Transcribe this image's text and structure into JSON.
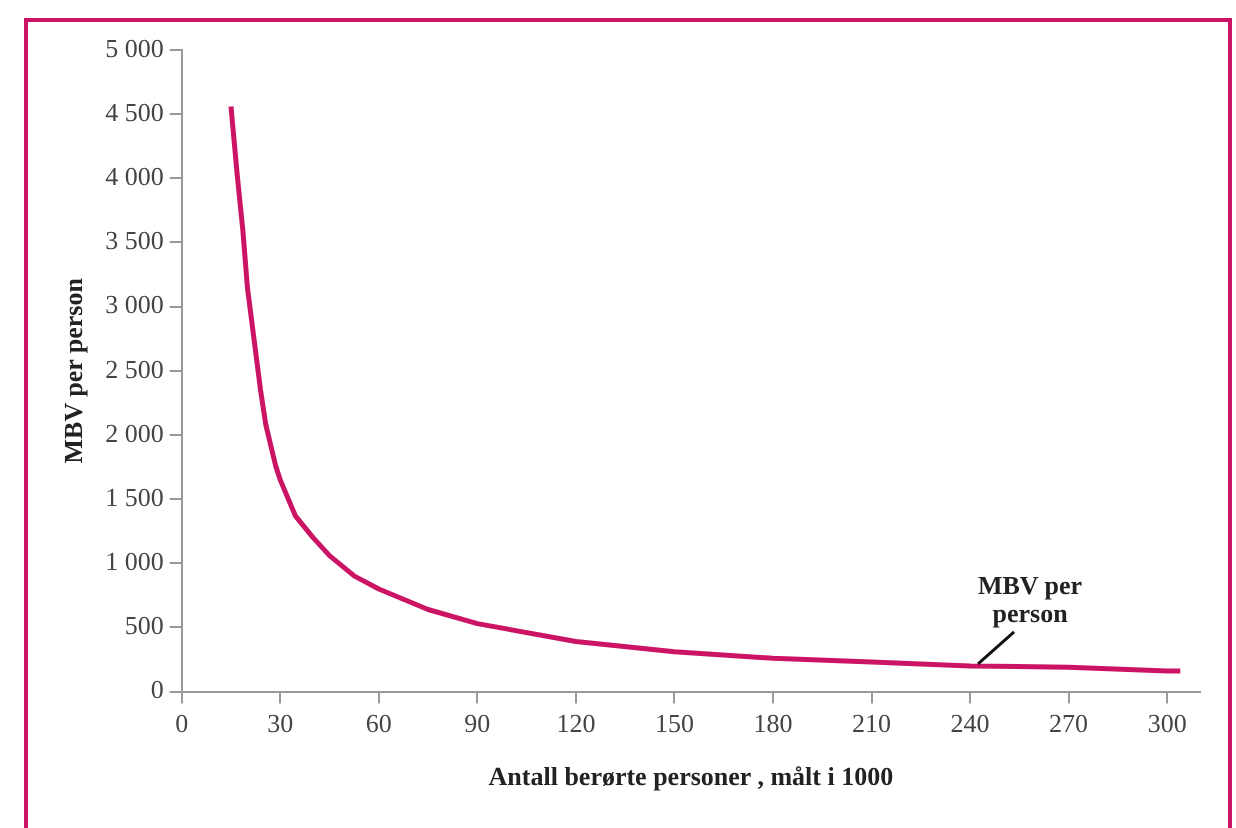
{
  "chart_data": {
    "type": "line",
    "xlabel": "Antall berørte personer , målt i 1000",
    "ylabel": "MBV per person",
    "x": [
      15,
      17,
      18.6,
      20,
      22,
      24,
      25.6,
      28.6,
      30,
      34.6,
      40,
      45,
      52.6,
      60,
      75,
      90,
      120,
      150,
      180,
      210,
      240,
      270,
      300,
      304
    ],
    "series": [
      {
        "name": "MBV per person",
        "color": "#cc1464",
        "values": [
          4560,
          4000,
          3600,
          3150,
          2750,
          2350,
          2080,
          1760,
          1650,
          1370,
          1200,
          1060,
          900,
          800,
          640,
          530,
          390,
          310,
          260,
          230,
          200,
          190,
          160,
          160
        ]
      }
    ],
    "xlim": [
      0,
      310
    ],
    "xticks": [
      0,
      30,
      60,
      90,
      120,
      150,
      180,
      210,
      240,
      270,
      300
    ],
    "ylim": [
      0,
      5000
    ],
    "yticks": [
      0,
      500,
      1000,
      1500,
      2000,
      2500,
      3000,
      3500,
      4000,
      4500,
      5000
    ],
    "grid": false,
    "legend": false,
    "marker": "none",
    "line_style": "solid"
  }
}
